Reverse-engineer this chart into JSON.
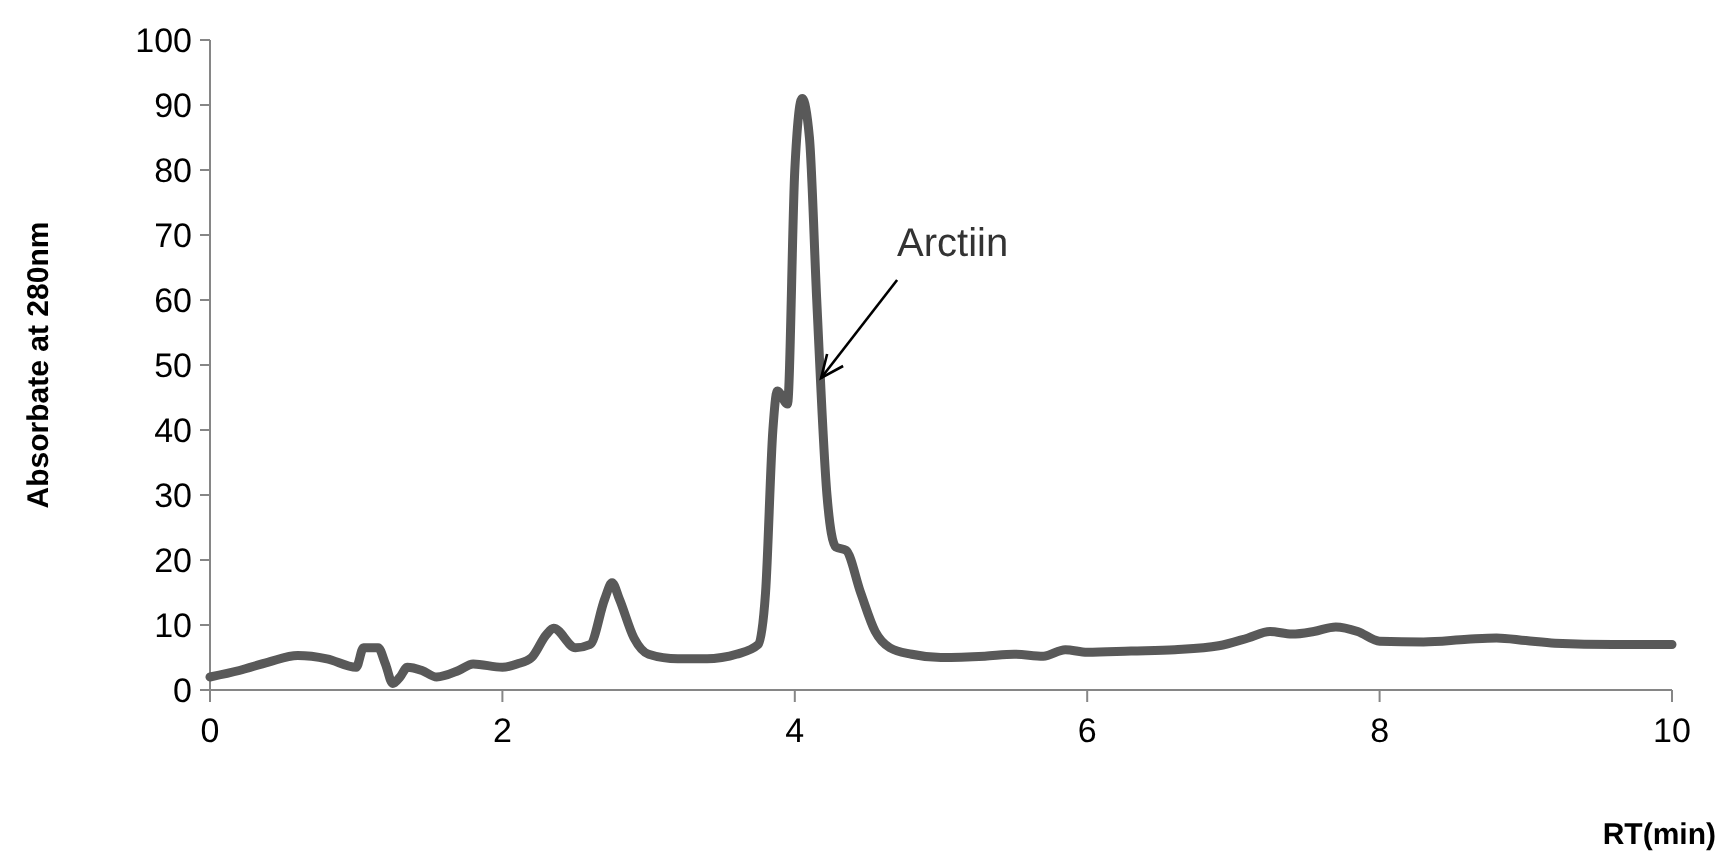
{
  "chart_data": {
    "type": "line",
    "xlabel": "RT(min)",
    "ylabel": "Absorbate at 280nm",
    "xlim": [
      0,
      10
    ],
    "xticks": [
      0,
      2,
      4,
      6,
      8,
      10
    ],
    "ylim": [
      0,
      100
    ],
    "yticks": [
      0,
      10,
      20,
      30,
      40,
      50,
      60,
      70,
      80,
      90,
      100
    ],
    "grid": false,
    "marker": "none",
    "line_style": "solid",
    "annotations": [
      {
        "text": "Arctiin",
        "x": 4.18,
        "y": 48
      }
    ],
    "series": [
      {
        "color": "#595959",
        "x": [
          0,
          0.2,
          0.4,
          0.6,
          0.8,
          1.0,
          1.05,
          1.15,
          1.2,
          1.25,
          1.3,
          1.35,
          1.45,
          1.55,
          1.7,
          1.8,
          2.0,
          2.1,
          2.2,
          2.3,
          2.35,
          2.5,
          2.6,
          2.7,
          2.75,
          2.8,
          2.9,
          3.0,
          3.2,
          3.4,
          3.5,
          3.6,
          3.75,
          3.8,
          3.85,
          3.88,
          3.95,
          4.0,
          4.05,
          4.1,
          4.15,
          4.22,
          4.28,
          4.35,
          4.45,
          4.55,
          4.65,
          4.8,
          5.0,
          5.3,
          5.5,
          5.7,
          5.85,
          6.0,
          6.3,
          6.6,
          6.9,
          7.1,
          7.25,
          7.4,
          7.55,
          7.7,
          7.85,
          8.0,
          8.3,
          8.6,
          8.8,
          9.0,
          9.2,
          9.6,
          10
        ],
        "values": [
          2,
          3,
          4.3,
          5.3,
          4.8,
          3.5,
          6.5,
          6.5,
          4,
          1,
          2,
          3.5,
          3,
          2,
          3,
          4,
          3.5,
          4,
          5,
          8.5,
          9.5,
          6.5,
          7,
          14,
          16.5,
          14,
          8,
          5.5,
          4.8,
          4.8,
          5,
          5.5,
          7,
          15,
          40,
          46,
          44,
          80,
          91,
          85,
          60,
          30,
          22,
          21.5,
          15,
          9,
          6.5,
          5.5,
          5,
          5.2,
          5.5,
          5.2,
          6.2,
          5.8,
          6,
          6.2,
          6.8,
          8,
          9,
          8.6,
          9,
          9.7,
          9,
          7.5,
          7.4,
          7.8,
          8,
          7.6,
          7.2,
          7,
          7
        ]
      }
    ]
  }
}
